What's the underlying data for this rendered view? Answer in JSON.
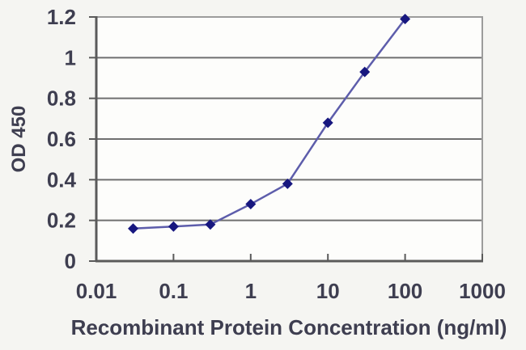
{
  "chart_data": {
    "type": "line",
    "title": "",
    "xlabel": "Recombinant Protein Concentration (ng/ml)",
    "ylabel": "OD 450",
    "x_scale": "log",
    "xlim": [
      0.01,
      1000
    ],
    "ylim": [
      0,
      1.2
    ],
    "x_ticks": [
      {
        "value": 0.01,
        "label": "0.01"
      },
      {
        "value": 0.1,
        "label": "0.1"
      },
      {
        "value": 1,
        "label": "1"
      },
      {
        "value": 10,
        "label": "10"
      },
      {
        "value": 100,
        "label": "100"
      },
      {
        "value": 1000,
        "label": "1000"
      }
    ],
    "y_ticks": [
      {
        "value": 0,
        "label": "0"
      },
      {
        "value": 0.2,
        "label": "0.2"
      },
      {
        "value": 0.4,
        "label": "0.4"
      },
      {
        "value": 0.6,
        "label": "0.6"
      },
      {
        "value": 0.8,
        "label": "0.8"
      },
      {
        "value": 1,
        "label": "1"
      },
      {
        "value": 1.2,
        "label": "1.2"
      }
    ],
    "grid": "horizontal-only",
    "legend_position": "none",
    "series": [
      {
        "marker": "diamond",
        "x": [
          0.03,
          0.1,
          0.3,
          1,
          3,
          10,
          30,
          100
        ],
        "y": [
          0.16,
          0.17,
          0.18,
          0.28,
          0.38,
          0.68,
          0.93,
          1.19
        ]
      }
    ],
    "colors": {
      "line": "#5d5dab",
      "marker": "#17177f",
      "grid": "#6f6f6f",
      "axis": "#5a5a5a",
      "border": "#9c9c9c",
      "text": "#3e3e50",
      "plot_bg": "#fdfdfb",
      "page_bg": "#f5f5f2"
    }
  }
}
